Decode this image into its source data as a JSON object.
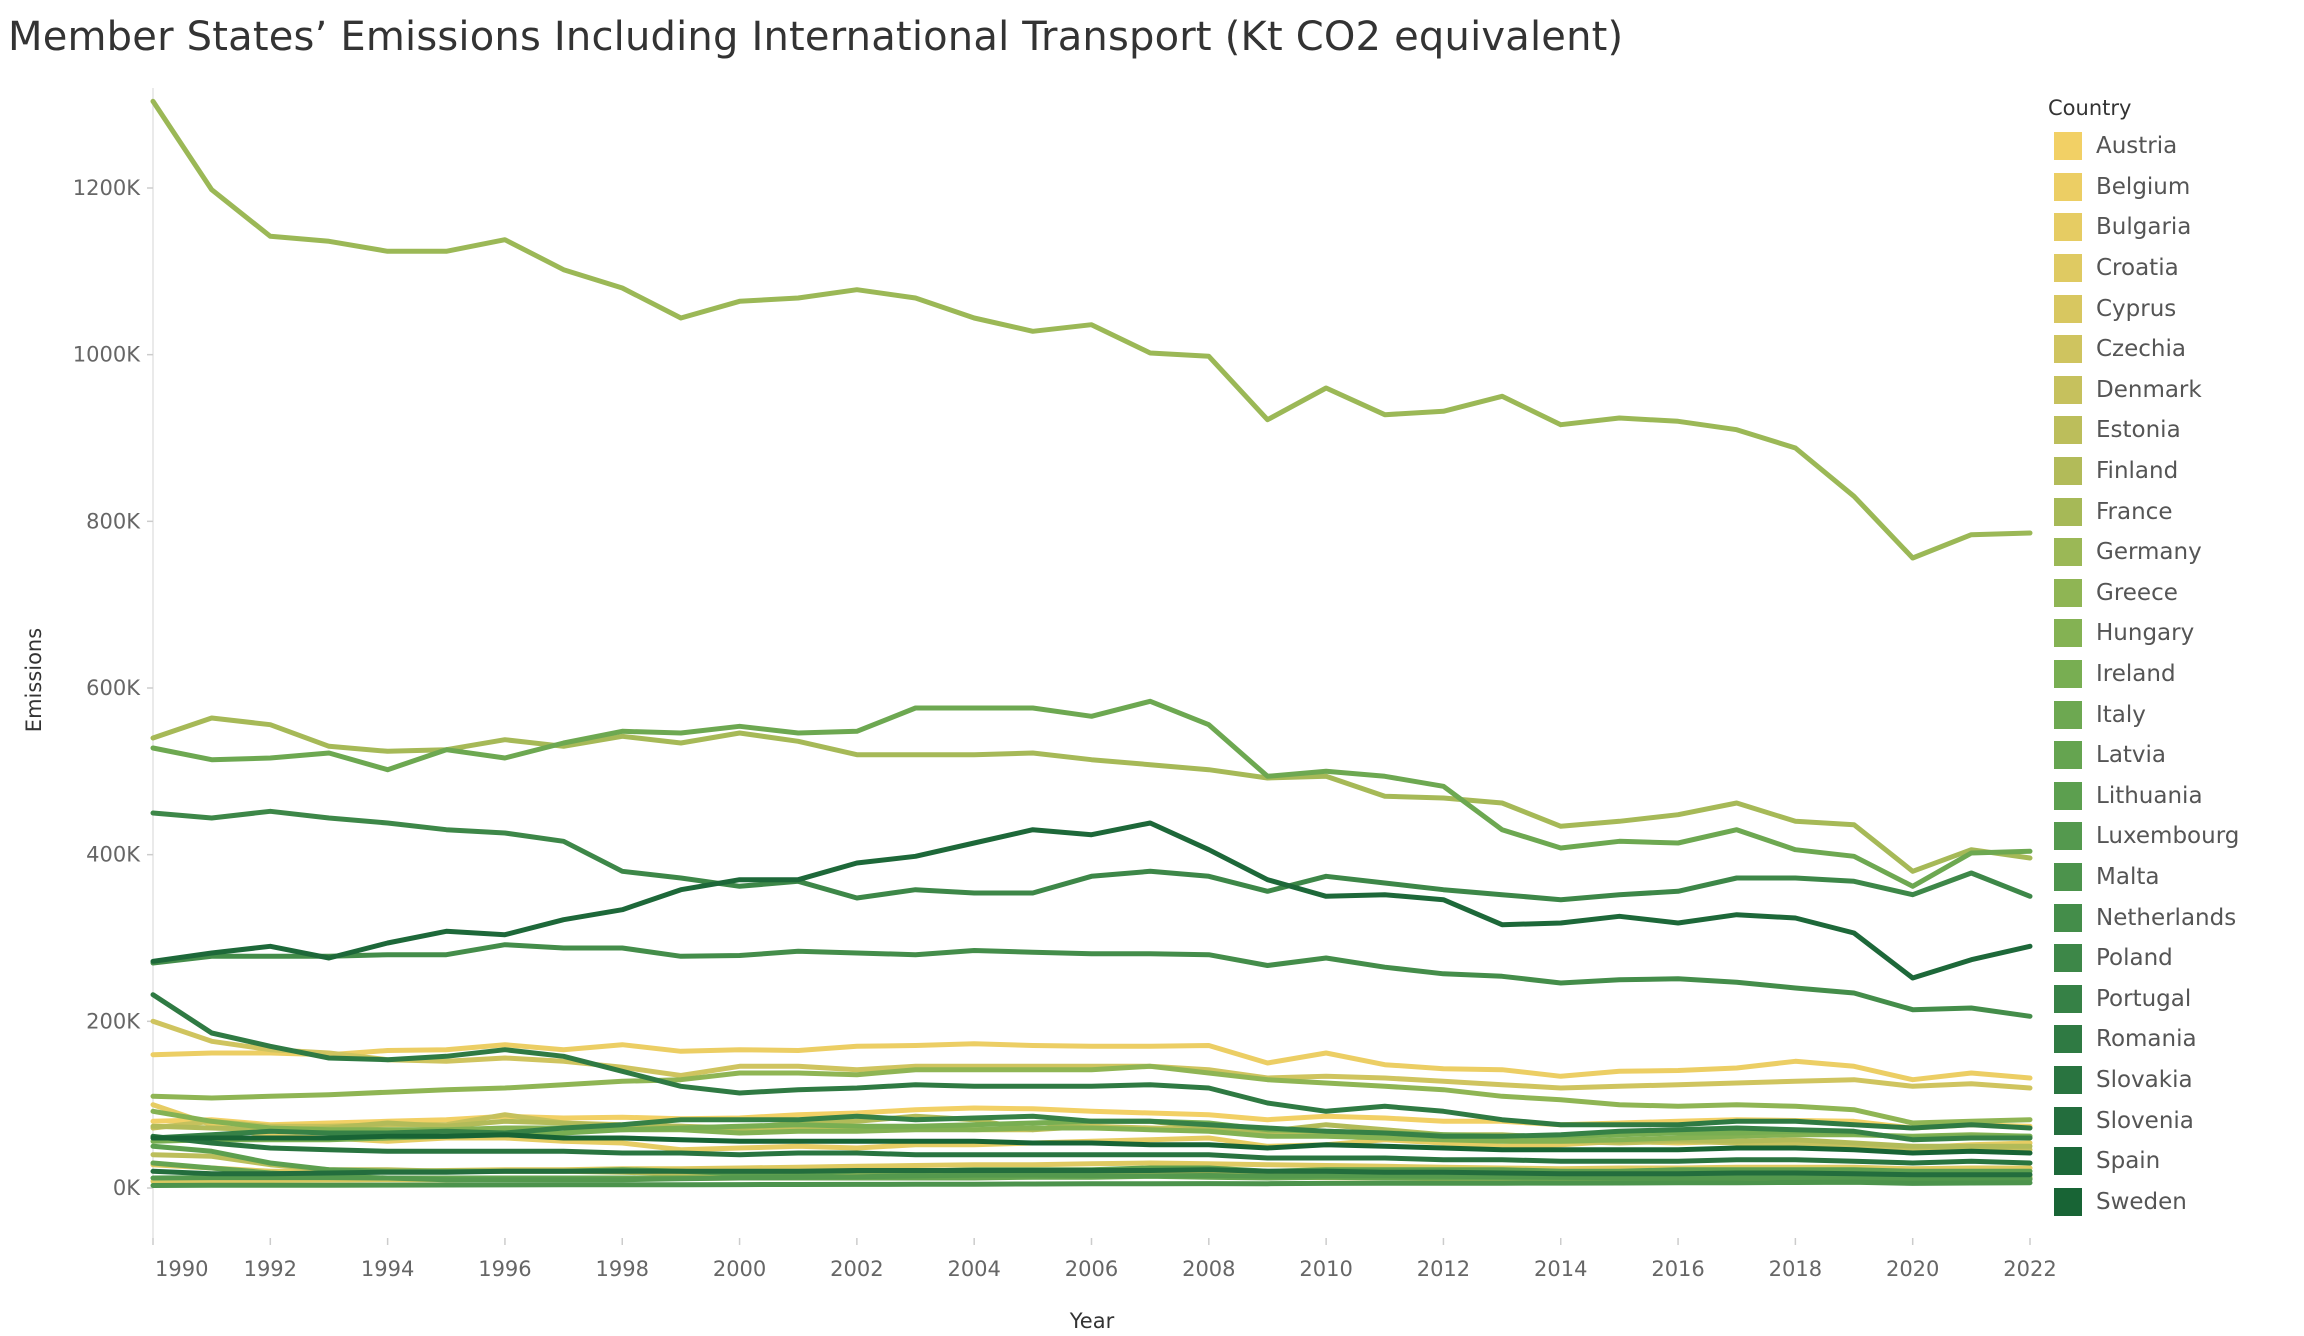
{
  "title": "Member States’ Emissions Including International Transport (Kt CO2 equivalent)",
  "chart_data": {
    "type": "line",
    "title": "Member States’ Emissions Including International Transport (Kt CO2 equivalent)",
    "xlabel": "Year",
    "ylabel": "Emissions",
    "x": [
      1990,
      1991,
      1992,
      1993,
      1994,
      1995,
      1996,
      1997,
      1998,
      1999,
      2000,
      2001,
      2002,
      2003,
      2004,
      2005,
      2006,
      2007,
      2008,
      2009,
      2010,
      2011,
      2012,
      2013,
      2014,
      2015,
      2016,
      2017,
      2018,
      2019,
      2020,
      2021,
      2022
    ],
    "x_ticks": [
      1990,
      1992,
      1994,
      1996,
      1998,
      2000,
      2002,
      2004,
      2006,
      2008,
      2010,
      2012,
      2014,
      2016,
      2018,
      2020,
      2022
    ],
    "x_tick_labels": [
      "1990",
      "1992",
      "1994",
      "1996",
      "1998",
      "2000",
      "2002",
      "2004",
      "2006",
      "2008",
      "2010",
      "2012",
      "2014",
      "2016",
      "2018",
      "2020",
      "2022"
    ],
    "y_ticks": [
      0,
      200000,
      400000,
      600000,
      800000,
      1000000,
      1200000
    ],
    "y_tick_labels": [
      "0K",
      "200K",
      "400K",
      "600K",
      "800K",
      "1000K",
      "1200K"
    ],
    "ylim": [
      -60000,
      1320000
    ],
    "grid": false,
    "legend_title": "Country",
    "legend_position": "right",
    "series": [
      {
        "name": "Austria",
        "color": "#f2d065",
        "values": [
          80000,
          82000,
          76000,
          78000,
          80000,
          82000,
          86000,
          84000,
          85000,
          83000,
          84000,
          88000,
          90000,
          94000,
          96000,
          95000,
          92000,
          90000,
          88000,
          82000,
          86000,
          84000,
          80000,
          80000,
          76000,
          78000,
          80000,
          82000,
          81000,
          80000,
          72000,
          76000,
          74000
        ]
      },
      {
        "name": "Belgium",
        "color": "#ecce64",
        "values": [
          160000,
          162000,
          162000,
          160000,
          165000,
          166000,
          172000,
          166000,
          172000,
          164000,
          166000,
          165000,
          170000,
          171000,
          173000,
          171000,
          170000,
          170000,
          171000,
          150000,
          162000,
          148000,
          143000,
          142000,
          134000,
          140000,
          141000,
          144000,
          152000,
          146000,
          130000,
          138000,
          132000
        ]
      },
      {
        "name": "Bulgaria",
        "color": "#e6cc63",
        "values": [
          100000,
          76000,
          62000,
          60000,
          56000,
          60000,
          60000,
          56000,
          54000,
          46000,
          48000,
          50000,
          48000,
          52000,
          52000,
          54000,
          56000,
          58000,
          60000,
          50000,
          52000,
          58000,
          54000,
          50000,
          52000,
          56000,
          54000,
          56000,
          54000,
          52000,
          48000,
          52000,
          54000
        ]
      },
      {
        "name": "Croatia",
        "color": "#dfca62",
        "values": [
          28000,
          24000,
          20000,
          20000,
          20000,
          21000,
          22000,
          22000,
          23000,
          23000,
          24000,
          25000,
          26000,
          27000,
          28000,
          28000,
          29000,
          30000,
          29000,
          28000,
          27000,
          26000,
          25000,
          24000,
          23000,
          24000,
          24000,
          25000,
          25000,
          25000,
          23000,
          24000,
          24000
        ]
      },
      {
        "name": "Cyprus",
        "color": "#d8c760",
        "values": [
          8000,
          8500,
          9000,
          9500,
          10000,
          10000,
          10500,
          11000,
          11000,
          11500,
          12000,
          12000,
          12500,
          13000,
          13000,
          13500,
          14000,
          14500,
          14500,
          13000,
          12500,
          12000,
          11000,
          10500,
          10500,
          11000,
          11000,
          11000,
          11500,
          11500,
          10000,
          10500,
          11000
        ]
      },
      {
        "name": "Czechia",
        "color": "#cfc45f",
        "values": [
          200000,
          176000,
          166000,
          162000,
          154000,
          152000,
          156000,
          152000,
          145000,
          135000,
          146000,
          146000,
          142000,
          146000,
          146000,
          146000,
          146000,
          146000,
          142000,
          132000,
          134000,
          132000,
          128000,
          124000,
          120000,
          122000,
          124000,
          126000,
          128000,
          130000,
          122000,
          125000,
          120000
        ]
      },
      {
        "name": "Denmark",
        "color": "#c6c15d",
        "values": [
          72000,
          80000,
          74000,
          74000,
          76000,
          76000,
          88000,
          78000,
          76000,
          74000,
          70000,
          72000,
          72000,
          72000,
          70000,
          70000,
          74000,
          72000,
          70000,
          64000,
          66000,
          62000,
          58000,
          60000,
          56000,
          54000,
          56000,
          54000,
          54000,
          50000,
          46000,
          48000,
          46000
        ]
      },
      {
        "name": "Estonia",
        "color": "#bcbe5b",
        "values": [
          40000,
          38000,
          28000,
          22000,
          22000,
          20000,
          20000,
          20000,
          19000,
          17000,
          17000,
          17000,
          17000,
          19000,
          19000,
          18000,
          17000,
          20000,
          18000,
          16000,
          20000,
          20000,
          19000,
          21000,
          20000,
          17000,
          17000,
          19000,
          19000,
          15000,
          12000,
          13000,
          13000
        ]
      },
      {
        "name": "Finland",
        "color": "#b2bb59",
        "values": [
          74000,
          72000,
          70000,
          72000,
          78000,
          74000,
          80000,
          78000,
          74000,
          74000,
          72000,
          78000,
          80000,
          86000,
          82000,
          70000,
          80000,
          80000,
          72000,
          68000,
          76000,
          70000,
          64000,
          64000,
          60000,
          56000,
          58000,
          56000,
          58000,
          54000,
          50000,
          50000,
          50000
        ]
      },
      {
        "name": "France",
        "color": "#a6b957",
        "values": [
          540000,
          564000,
          556000,
          530000,
          524000,
          526000,
          538000,
          530000,
          542000,
          534000,
          546000,
          536000,
          520000,
          520000,
          520000,
          522000,
          514000,
          508000,
          502000,
          492000,
          494000,
          470000,
          468000,
          462000,
          434000,
          440000,
          448000,
          462000,
          440000,
          436000,
          380000,
          406000,
          396000
        ]
      },
      {
        "name": "Germany",
        "color": "#9bb856",
        "values": [
          1304000,
          1198000,
          1142000,
          1136000,
          1124000,
          1124000,
          1138000,
          1102000,
          1080000,
          1044000,
          1064000,
          1068000,
          1078000,
          1068000,
          1044000,
          1028000,
          1036000,
          1002000,
          998000,
          922000,
          960000,
          928000,
          932000,
          950000,
          916000,
          924000,
          920000,
          910000,
          888000,
          830000,
          756000,
          784000,
          786000
        ]
      },
      {
        "name": "Greece",
        "color": "#8fb554",
        "values": [
          110000,
          108000,
          110000,
          112000,
          115000,
          118000,
          120000,
          124000,
          128000,
          130000,
          138000,
          138000,
          136000,
          142000,
          142000,
          142000,
          142000,
          146000,
          138000,
          130000,
          126000,
          122000,
          118000,
          110000,
          106000,
          100000,
          98000,
          100000,
          98000,
          94000,
          78000,
          80000,
          82000
        ]
      },
      {
        "name": "Hungary",
        "color": "#84b253",
        "values": [
          92000,
          80000,
          72000,
          70000,
          70000,
          70000,
          72000,
          72000,
          70000,
          70000,
          66000,
          68000,
          68000,
          70000,
          70000,
          72000,
          72000,
          70000,
          68000,
          62000,
          62000,
          60000,
          58000,
          56000,
          56000,
          58000,
          60000,
          62000,
          64000,
          64000,
          62000,
          64000,
          62000
        ]
      },
      {
        "name": "Ireland",
        "color": "#78ae52",
        "values": [
          56000,
          58000,
          58000,
          58000,
          60000,
          62000,
          64000,
          66000,
          70000,
          72000,
          74000,
          76000,
          74000,
          74000,
          76000,
          78000,
          80000,
          80000,
          78000,
          70000,
          68000,
          66000,
          64000,
          62000,
          62000,
          64000,
          66000,
          66000,
          68000,
          66000,
          60000,
          62000,
          62000
        ]
      },
      {
        "name": "Italy",
        "color": "#6da851",
        "values": [
          528000,
          514000,
          516000,
          522000,
          502000,
          526000,
          516000,
          534000,
          548000,
          546000,
          554000,
          546000,
          548000,
          576000,
          576000,
          576000,
          566000,
          584000,
          556000,
          494000,
          500000,
          494000,
          482000,
          430000,
          408000,
          416000,
          414000,
          430000,
          406000,
          398000,
          362000,
          402000,
          404000
        ]
      },
      {
        "name": "Latvia",
        "color": "#65a450",
        "values": [
          30000,
          24000,
          18000,
          14000,
          12000,
          12000,
          12000,
          12000,
          12000,
          12000,
          12000,
          12000,
          12000,
          12000,
          12000,
          13000,
          13000,
          14000,
          13000,
          12000,
          13000,
          12000,
          12000,
          12000,
          12000,
          12000,
          12000,
          12000,
          13000,
          12000,
          11000,
          11000,
          11000
        ]
      },
      {
        "name": "Lithuania",
        "color": "#5c9f4f",
        "values": [
          50000,
          44000,
          30000,
          22000,
          20000,
          20000,
          20000,
          20000,
          22000,
          20000,
          17000,
          18000,
          20000,
          20000,
          22000,
          22000,
          22000,
          24000,
          24000,
          20000,
          22000,
          22000,
          22000,
          22000,
          20000,
          20000,
          22000,
          22000,
          22000,
          22000,
          20000,
          20000,
          20000
        ]
      },
      {
        "name": "Luxembourg",
        "color": "#54994e",
        "values": [
          12000,
          12500,
          12500,
          12500,
          12000,
          10000,
          10000,
          10000,
          10000,
          11000,
          12000,
          13000,
          13500,
          14500,
          15500,
          15500,
          15000,
          14500,
          15000,
          14000,
          14500,
          14500,
          14000,
          13500,
          13000,
          12500,
          12500,
          12500,
          12500,
          12000,
          10000,
          11000,
          10500
        ]
      },
      {
        "name": "Malta",
        "color": "#4c934c",
        "values": [
          3000,
          3200,
          3300,
          3400,
          3500,
          3600,
          3700,
          3800,
          3900,
          4000,
          4100,
          4200,
          4300,
          4400,
          4600,
          4800,
          5000,
          5200,
          5300,
          5200,
          5500,
          5600,
          5700,
          5800,
          5900,
          6000,
          6200,
          6400,
          6600,
          6800,
          5500,
          6000,
          6300
        ]
      },
      {
        "name": "Netherlands",
        "color": "#448d4a",
        "values": [
          270000,
          278000,
          278000,
          278000,
          280000,
          280000,
          292000,
          288000,
          288000,
          278000,
          279000,
          284000,
          282000,
          280000,
          285000,
          283000,
          281000,
          281000,
          280000,
          267000,
          276000,
          265000,
          257000,
          254000,
          246000,
          250000,
          251000,
          247000,
          240000,
          234000,
          214000,
          216000,
          206000
        ]
      },
      {
        "name": "Poland",
        "color": "#3d8748",
        "values": [
          450000,
          444000,
          452000,
          444000,
          438000,
          430000,
          426000,
          416000,
          380000,
          372000,
          362000,
          368000,
          348000,
          358000,
          354000,
          354000,
          374000,
          380000,
          374000,
          356000,
          374000,
          366000,
          358000,
          352000,
          346000,
          352000,
          356000,
          372000,
          372000,
          368000,
          352000,
          378000,
          350000
        ]
      },
      {
        "name": "Portugal",
        "color": "#368146",
        "values": [
          60000,
          64000,
          68000,
          66000,
          66000,
          68000,
          66000,
          72000,
          76000,
          82000,
          82000,
          82000,
          86000,
          82000,
          84000,
          86000,
          80000,
          80000,
          76000,
          72000,
          68000,
          66000,
          62000,
          62000,
          64000,
          68000,
          70000,
          72000,
          70000,
          68000,
          58000,
          60000,
          60000
        ]
      },
      {
        "name": "Romania",
        "color": "#2f7a43",
        "values": [
          232000,
          186000,
          170000,
          156000,
          154000,
          158000,
          166000,
          158000,
          140000,
          122000,
          114000,
          118000,
          120000,
          124000,
          122000,
          122000,
          122000,
          124000,
          120000,
          102000,
          92000,
          98000,
          92000,
          82000,
          76000,
          76000,
          76000,
          80000,
          80000,
          76000,
          72000,
          76000,
          72000
        ]
      },
      {
        "name": "Slovakia",
        "color": "#297440",
        "values": [
          62000,
          54000,
          48000,
          46000,
          44000,
          44000,
          44000,
          44000,
          42000,
          42000,
          40000,
          42000,
          42000,
          40000,
          40000,
          40000,
          40000,
          40000,
          40000,
          36000,
          36000,
          36000,
          34000,
          34000,
          32000,
          32000,
          32000,
          34000,
          34000,
          32000,
          30000,
          32000,
          30000
        ]
      },
      {
        "name": "Slovenia",
        "color": "#236d3d",
        "values": [
          20000,
          17000,
          17000,
          18000,
          19000,
          19000,
          20000,
          20000,
          20000,
          20000,
          20000,
          20000,
          21000,
          21000,
          21000,
          21000,
          21000,
          21000,
          22000,
          20000,
          20000,
          19000,
          19000,
          18000,
          17000,
          17000,
          17000,
          18000,
          18000,
          17000,
          16000,
          16000,
          16000
        ]
      },
      {
        "name": "Spain",
        "color": "#1d6839",
        "values": [
          272000,
          282000,
          290000,
          276000,
          294000,
          308000,
          304000,
          322000,
          334000,
          358000,
          370000,
          370000,
          390000,
          398000,
          414000,
          430000,
          424000,
          438000,
          406000,
          370000,
          350000,
          352000,
          346000,
          316000,
          318000,
          326000,
          318000,
          328000,
          324000,
          306000,
          252000,
          274000,
          290000
        ]
      },
      {
        "name": "Sweden",
        "color": "#186435",
        "values": [
          60000,
          60000,
          60000,
          60000,
          62000,
          62000,
          64000,
          60000,
          60000,
          58000,
          56000,
          56000,
          56000,
          56000,
          56000,
          54000,
          54000,
          52000,
          52000,
          48000,
          52000,
          50000,
          48000,
          46000,
          46000,
          46000,
          46000,
          48000,
          48000,
          46000,
          42000,
          44000,
          42000
        ]
      }
    ]
  }
}
